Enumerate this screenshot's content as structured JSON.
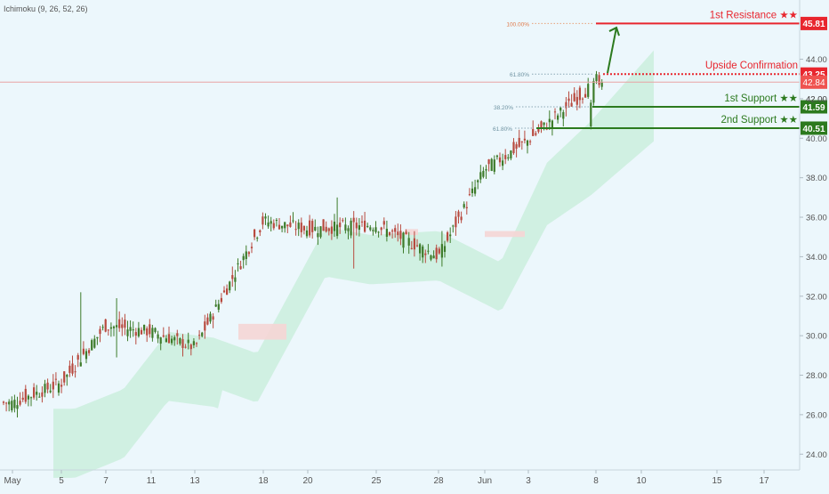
{
  "indicator_label": "Ichimoku (9, 26, 52, 26)",
  "colors": {
    "background": "#ecf7fc",
    "up_candle": "#3d7b2a",
    "down_candle": "#b84a3f",
    "cloud_bull": "#cbeedd",
    "cloud_bear": "#f5d5d5",
    "resistance": "#e8262e",
    "support": "#2c7a1e",
    "current_price": "#ef5350",
    "axis_text": "#555555"
  },
  "chart_data": {
    "type": "candlestick",
    "y_axis_ticks": [
      "24.00",
      "26.00",
      "28.00",
      "30.00",
      "32.00",
      "34.00",
      "36.00",
      "38.00",
      "40.00",
      "42.00",
      "44.00"
    ],
    "ylim": [
      23.2,
      47.0
    ],
    "x_axis_ticks": [
      "May",
      "5",
      "7",
      "11",
      "13",
      "18",
      "20",
      "25",
      "28",
      "Jun",
      "3",
      "8",
      "10",
      "15",
      "17"
    ],
    "price_anchors": [
      {
        "x": "May",
        "close": 26.6
      },
      {
        "x": "5",
        "close": 27.6
      },
      {
        "x": "7",
        "close": 30.5
      },
      {
        "x": "11",
        "close": 30.2
      },
      {
        "x": "13",
        "close": 29.4
      },
      {
        "x": "18",
        "close": 35.8
      },
      {
        "x": "20",
        "close": 35.4
      },
      {
        "x": "25",
        "close": 35.6
      },
      {
        "x": "28",
        "close": 34.0
      },
      {
        "x": "Jun",
        "close": 38.4
      },
      {
        "x": "3",
        "close": 39.9
      },
      {
        "x": "8",
        "close": 42.84
      }
    ],
    "horizontal_levels": [
      {
        "name": "1st Resistance ★★",
        "value": 45.81,
        "label": "45.81",
        "kind": "resistance",
        "style": "solid"
      },
      {
        "name": "Upside Confirmation",
        "value": 43.25,
        "label": "43.25",
        "kind": "resistance",
        "style": "dotted"
      },
      {
        "name": "1st Support ★★",
        "value": 41.59,
        "label": "41.59",
        "kind": "support",
        "style": "solid"
      },
      {
        "name": "2nd Support ★★",
        "value": 40.51,
        "label": "40.51",
        "kind": "support",
        "style": "solid"
      }
    ],
    "current_price": {
      "value": 42.84,
      "label": "42.84"
    },
    "fibonacci_markers": [
      {
        "label": "100.00%",
        "value": 45.81
      },
      {
        "label": "61.80%",
        "value": 43.25
      },
      {
        "label": "38.20%",
        "value": 41.59
      },
      {
        "label": "61.80%",
        "value": 40.51
      }
    ],
    "partially_hidden_tick": "42.00"
  }
}
